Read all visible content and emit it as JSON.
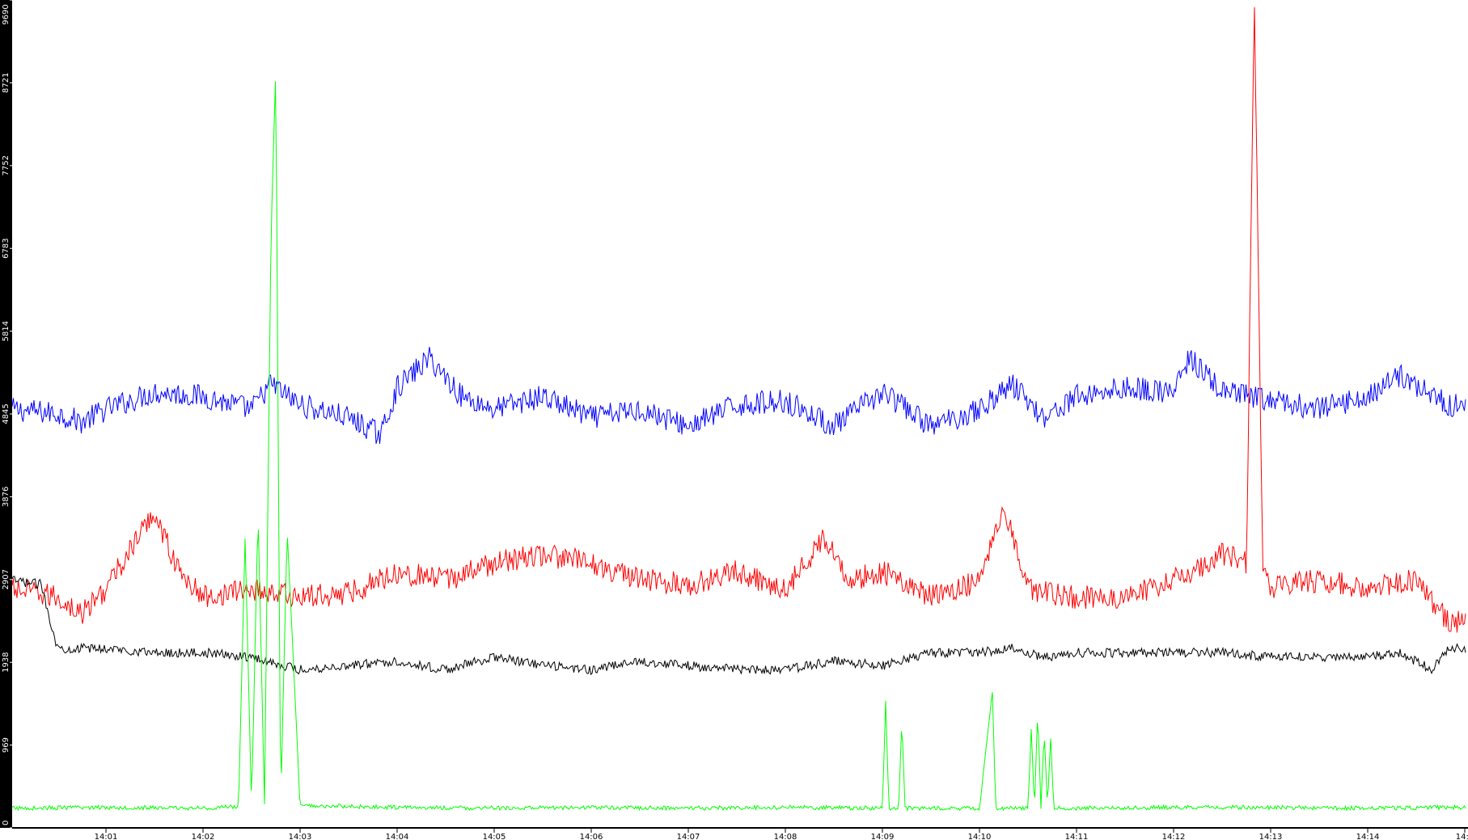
{
  "colors": {
    "background": "#ffffff",
    "left_bar": "#000000",
    "axis_line": "#000000",
    "y_tick_label": "#ffffff",
    "x_tick_label": "#000000"
  },
  "chart_data": {
    "type": "line",
    "title": "",
    "xlabel": "",
    "ylabel": "",
    "grid": false,
    "legend": "none",
    "x_ticks": [
      "14:01",
      "14:02",
      "14:03",
      "14:04",
      "14:05",
      "14:06",
      "14:07",
      "14:08",
      "14:09",
      "14:10",
      "14:11",
      "14:12",
      "14:13",
      "14:14",
      "14:1"
    ],
    "y_ticks": [
      "0",
      "969",
      "1938",
      "2907",
      "3876",
      "4845",
      "5814",
      "6783",
      "7752",
      "8721",
      "9690"
    ],
    "ylim": [
      0,
      9690
    ],
    "series": [
      {
        "color": "#0000ff",
        "x": [
          "14:00:00",
          "14:00:30",
          "14:00:45",
          "14:01:00",
          "14:01:30",
          "14:02:00",
          "14:02:30",
          "14:02:42",
          "14:03:00",
          "14:03:30",
          "14:03:50",
          "14:04:00",
          "14:04:20",
          "14:04:40",
          "14:05:00",
          "14:05:30",
          "14:06:00",
          "14:06:30",
          "14:07:00",
          "14:07:30",
          "14:08:00",
          "14:08:30",
          "14:09:00",
          "14:09:30",
          "14:10:00",
          "14:10:20",
          "14:10:40",
          "14:11:00",
          "14:11:30",
          "14:12:00",
          "14:12:10",
          "14:12:30",
          "14:13:00",
          "14:13:30",
          "14:14:00",
          "14:14:20",
          "14:14:50"
        ],
        "values": [
          4900,
          4850,
          4750,
          4900,
          5100,
          5050,
          4900,
          5200,
          4950,
          4800,
          4600,
          5150,
          5500,
          5050,
          4900,
          5050,
          4800,
          4900,
          4700,
          4950,
          5000,
          4700,
          5100,
          4700,
          4900,
          5200,
          4800,
          5050,
          5150,
          5100,
          5500,
          5100,
          5000,
          4900,
          5050,
          5300,
          4950
        ]
      },
      {
        "color": "#ff0000",
        "x": [
          "14:00:00",
          "14:00:30",
          "14:00:45",
          "14:01:00",
          "14:01:20",
          "14:01:30",
          "14:01:45",
          "14:02:00",
          "14:02:30",
          "14:03:00",
          "14:03:30",
          "14:04:00",
          "14:04:30",
          "14:05:00",
          "14:05:30",
          "14:06:00",
          "14:06:30",
          "14:07:00",
          "14:07:30",
          "14:08:00",
          "14:08:25",
          "14:08:40",
          "14:09:00",
          "14:09:30",
          "14:10:00",
          "14:10:15",
          "14:10:30",
          "14:11:00",
          "14:11:30",
          "14:12:00",
          "14:12:30",
          "14:12:45",
          "14:12:50",
          "14:12:55",
          "14:13:00",
          "14:13:30",
          "14:14:00",
          "14:14:30",
          "14:14:50"
        ],
        "values": [
          2800,
          2700,
          2500,
          2800,
          3400,
          3700,
          3000,
          2700,
          2800,
          2700,
          2750,
          3000,
          2900,
          3100,
          3200,
          3100,
          2900,
          2850,
          3000,
          2800,
          3400,
          2900,
          3000,
          2700,
          2900,
          3800,
          2800,
          2700,
          2700,
          2900,
          3200,
          3100,
          9690,
          3100,
          2800,
          2900,
          2800,
          2900,
          2400
        ]
      },
      {
        "color": "#000000",
        "x": [
          "14:00:00",
          "14:00:20",
          "14:00:30",
          "14:01:00",
          "14:01:30",
          "14:02:00",
          "14:02:30",
          "14:03:00",
          "14:03:30",
          "14:04:00",
          "14:04:30",
          "14:05:00",
          "14:05:30",
          "14:06:00",
          "14:06:30",
          "14:07:00",
          "14:07:30",
          "14:08:00",
          "14:08:30",
          "14:09:00",
          "14:09:30",
          "14:10:00",
          "14:10:20",
          "14:10:40",
          "14:11:00",
          "14:11:30",
          "14:12:00",
          "14:12:30",
          "14:13:00",
          "14:13:30",
          "14:14:00",
          "14:14:20",
          "14:14:40",
          "14:14:50"
        ],
        "values": [
          2900,
          2850,
          2100,
          2100,
          2050,
          2050,
          2000,
          1850,
          1900,
          1950,
          1850,
          2000,
          1900,
          1850,
          1950,
          1900,
          1850,
          1850,
          1950,
          1900,
          2050,
          2050,
          2100,
          2000,
          2050,
          2050,
          2050,
          2050,
          2000,
          2000,
          2000,
          2050,
          1850,
          2100
        ]
      },
      {
        "color": "#00ff00",
        "x": [
          "14:00:00",
          "14:01:00",
          "14:02:00",
          "14:02:22",
          "14:02:26",
          "14:02:30",
          "14:02:34",
          "14:02:38",
          "14:02:42",
          "14:02:45",
          "14:02:48",
          "14:02:52",
          "14:03:00",
          "14:04:00",
          "14:05:00",
          "14:06:00",
          "14:07:00",
          "14:08:00",
          "14:09:00",
          "14:09:02",
          "14:09:04",
          "14:09:10",
          "14:09:12",
          "14:09:14",
          "14:10:00",
          "14:10:08",
          "14:10:10",
          "14:10:12",
          "14:10:30",
          "14:10:32",
          "14:10:34",
          "14:10:36",
          "14:10:38",
          "14:10:40",
          "14:10:42",
          "14:10:44",
          "14:10:46",
          "14:10:48",
          "14:11:00",
          "14:12:00",
          "14:13:00",
          "14:14:00",
          "14:14:50"
        ],
        "values": [
          230,
          240,
          230,
          250,
          3400,
          250,
          3700,
          300,
          6900,
          8900,
          250,
          3500,
          260,
          240,
          230,
          240,
          230,
          240,
          230,
          1500,
          230,
          230,
          1250,
          230,
          230,
          1600,
          230,
          230,
          230,
          1150,
          230,
          1400,
          230,
          1150,
          230,
          1050,
          230,
          230,
          230,
          240,
          240,
          230,
          240
        ]
      }
    ]
  }
}
